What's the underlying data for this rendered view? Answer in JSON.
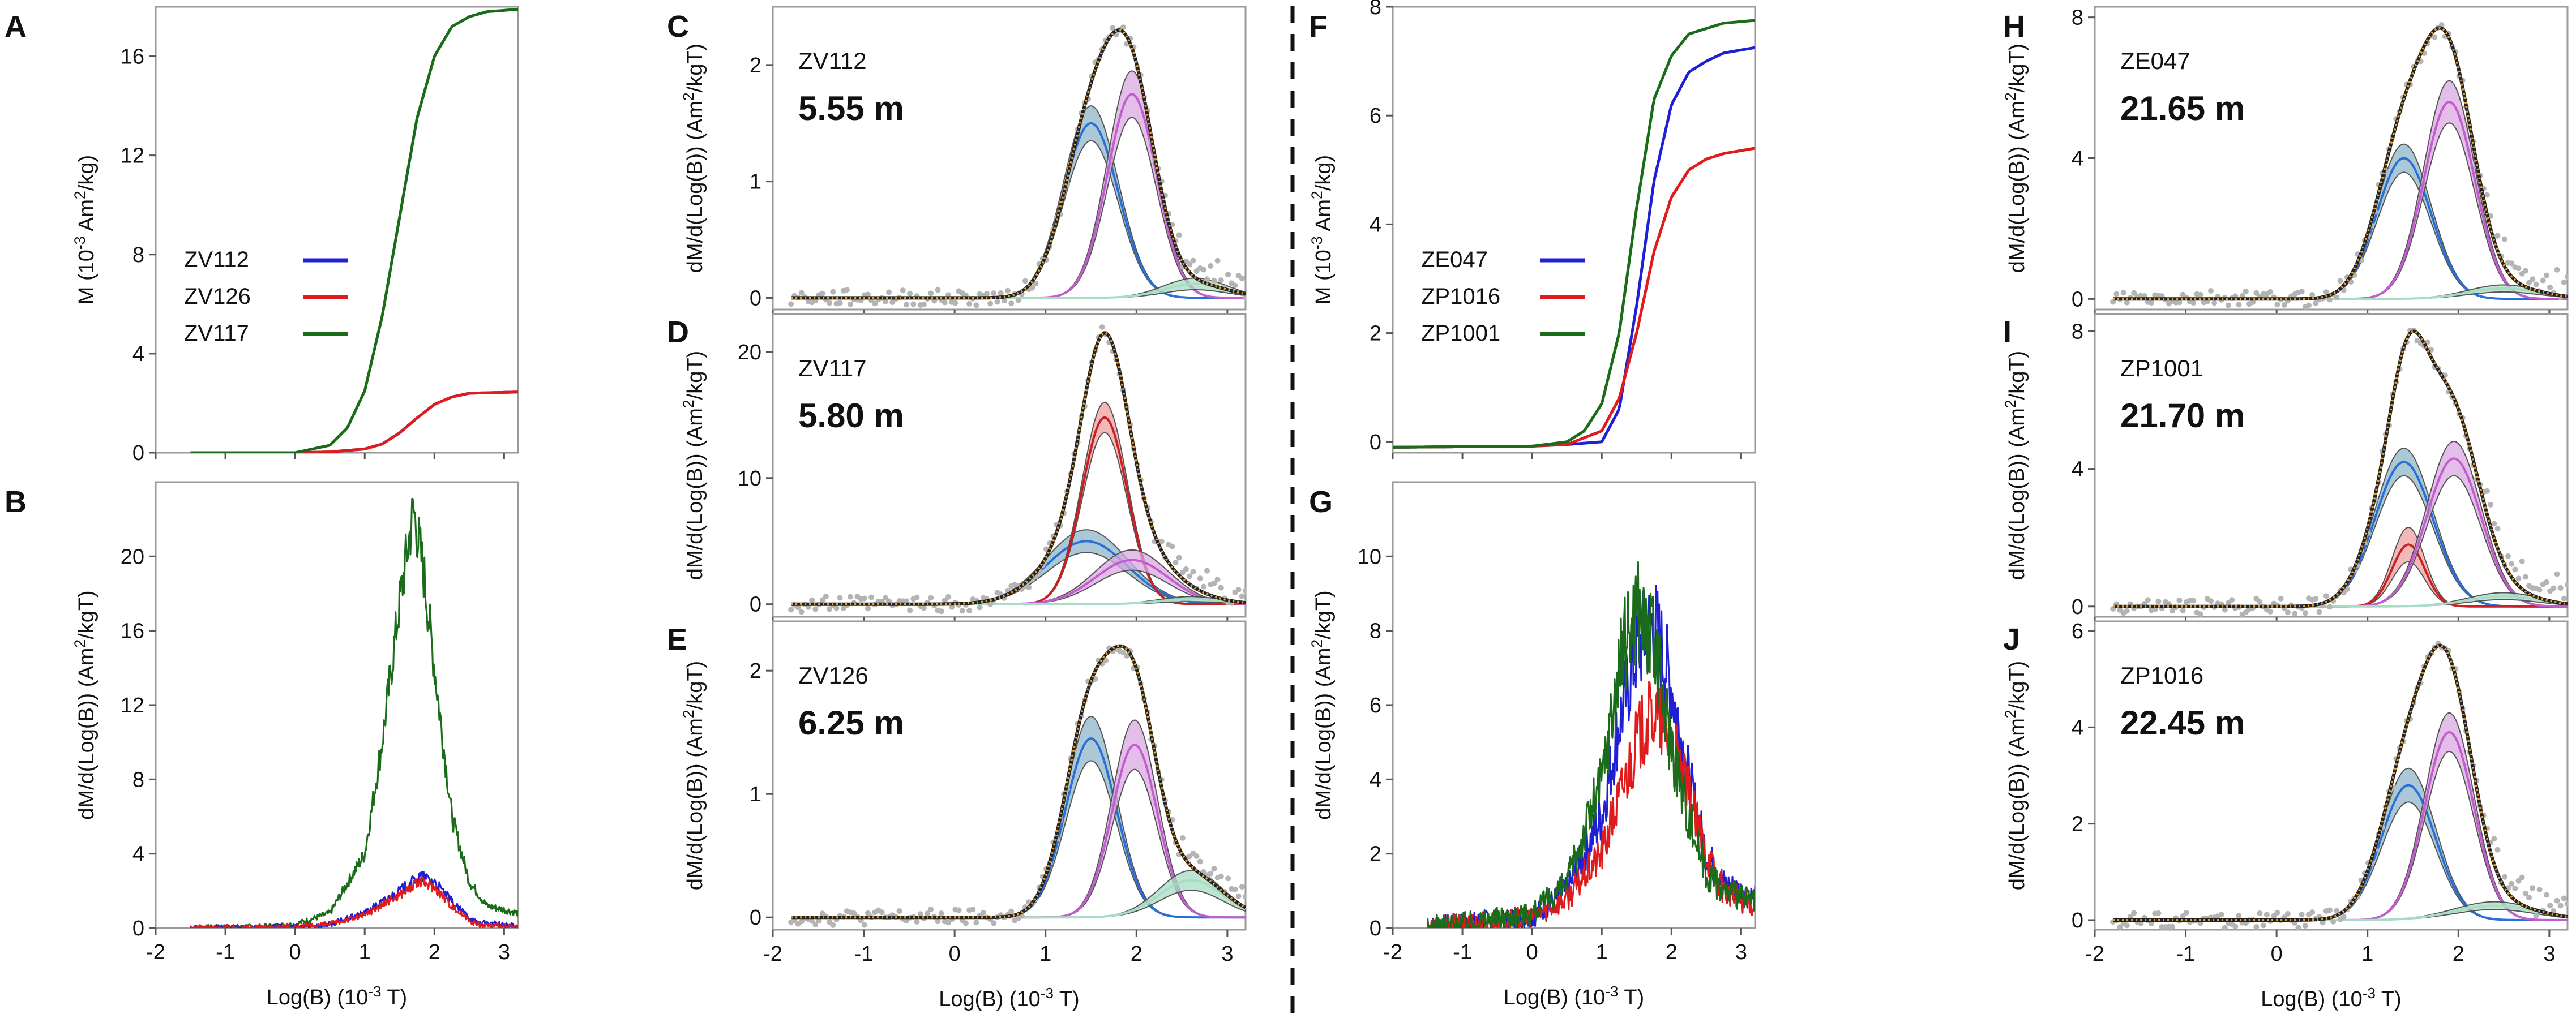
{
  "figure": {
    "xlabel_main": "Log(B) (10",
    "xlabel_sup": "-3",
    "xlabel_tail": " T)"
  },
  "colors": {
    "blue": "#1f1fd6",
    "red": "#e01b1b",
    "green": "#1a6b1a",
    "fit_orange": "#e8a43c",
    "fit_black": "#222222",
    "comp_blue": "#2a6fd6",
    "comp_blue_band": "#8fb5c9",
    "comp_purple": "#c25ccf",
    "comp_purple_band": "#d9a8e0",
    "comp_red": "#cc1f1f",
    "comp_red_band": "#f0a0a0",
    "comp_mint": "#a8dcc4",
    "data_gray": "#b4b4b4",
    "divider": "#111111"
  },
  "chart_data": [
    {
      "panel": "A",
      "type": "line",
      "title": "",
      "ylabel": "M (10-3 Am2/kg)",
      "xlabel": "",
      "xlim": [
        -2,
        3.2
      ],
      "ylim": [
        0,
        18
      ],
      "xticks": [],
      "yticks": [
        "0",
        "4",
        "8",
        "12",
        "16"
      ],
      "legend": {
        "placement": "middle-left",
        "entries": [
          "ZV112",
          "ZV126",
          "ZV117"
        ]
      },
      "series": [
        {
          "name": "ZV112",
          "color": "blue",
          "x": [
            -1.5,
            0,
            0.5,
            1,
            1.25,
            1.5,
            1.75,
            2,
            2.25,
            2.5,
            3.2
          ],
          "y": [
            0,
            0,
            0.03,
            0.15,
            0.35,
            0.8,
            1.4,
            1.95,
            2.25,
            2.4,
            2.45
          ]
        },
        {
          "name": "ZV126",
          "color": "red",
          "x": [
            -1.5,
            0,
            0.5,
            1,
            1.25,
            1.5,
            1.75,
            2,
            2.25,
            2.5,
            3.2
          ],
          "y": [
            0,
            0,
            0.03,
            0.15,
            0.35,
            0.8,
            1.4,
            1.95,
            2.25,
            2.4,
            2.45
          ]
        },
        {
          "name": "ZV117",
          "color": "green",
          "x": [
            -1.5,
            0,
            0.5,
            0.75,
            1,
            1.25,
            1.5,
            1.75,
            2,
            2.25,
            2.5,
            2.75,
            3.2
          ],
          "y": [
            0,
            0,
            0.3,
            1,
            2.5,
            5.5,
            9.5,
            13.5,
            16,
            17.2,
            17.6,
            17.8,
            17.9
          ]
        }
      ]
    },
    {
      "panel": "B",
      "type": "line",
      "title": "",
      "ylabel": "dM/d(Log(B)) (Am2/kgT)",
      "xlabel": "Log(B) (10-3 T)",
      "xlim": [
        -2,
        3.2
      ],
      "ylim": [
        0,
        24
      ],
      "xticks": [
        "-2",
        "-1",
        "0",
        "1",
        "2",
        "3"
      ],
      "yticks": [
        "0",
        "4",
        "8",
        "12",
        "16",
        "20"
      ],
      "series": [
        {
          "name": "ZV117",
          "color": "green",
          "x": [
            -1.5,
            -0.5,
            0,
            0.5,
            1,
            1.25,
            1.5,
            1.7,
            1.85,
            2,
            2.25,
            2.5,
            2.75,
            3.2
          ],
          "y": [
            0,
            0.05,
            0.2,
            0.8,
            4,
            10,
            17.5,
            22.5,
            19,
            14,
            6,
            2.5,
            1.2,
            0.8
          ]
        },
        {
          "name": "ZV112",
          "color": "blue",
          "x": [
            -1.5,
            0,
            0.5,
            1,
            1.5,
            1.8,
            2,
            2.3,
            2.6,
            3.2
          ],
          "y": [
            0,
            0.05,
            0.2,
            0.8,
            2,
            2.8,
            2.5,
            1.2,
            0.3,
            0.1
          ]
        },
        {
          "name": "ZV126",
          "color": "red",
          "x": [
            -1.5,
            0,
            0.5,
            1,
            1.5,
            1.8,
            2,
            2.3,
            2.6,
            3.2
          ],
          "y": [
            0,
            0.05,
            0.2,
            0.7,
            1.8,
            2.5,
            2.2,
            1,
            0.2,
            0
          ]
        }
      ]
    },
    {
      "panel": "C",
      "type": "line",
      "sample": "ZV112",
      "depth": "5.55 m",
      "ylabel": "dM/d(Log(B)) (Am2/kgT)",
      "xlabel": "",
      "xlim": [
        -2,
        3.2
      ],
      "ylim": [
        -0.1,
        2.5
      ],
      "xticks": [],
      "yticks": [
        "0",
        "1",
        "2"
      ],
      "total_peak": 2.3,
      "components": [
        {
          "name": "blue",
          "mu": 1.5,
          "sigma": 0.3,
          "amp": 1.5,
          "band": 0.15
        },
        {
          "name": "purple",
          "mu": 1.95,
          "sigma": 0.27,
          "amp": 1.75,
          "band": 0.2
        },
        {
          "name": "mint",
          "mu": 2.65,
          "sigma": 0.35,
          "amp": 0.12,
          "band": 0.05
        }
      ]
    },
    {
      "panel": "D",
      "type": "line",
      "sample": "ZV117",
      "depth": "5.80 m",
      "ylabel": "dM/d(Log(B)) (Am2/kgT)",
      "xlabel": "",
      "xlim": [
        -2,
        3.2
      ],
      "ylim": [
        -1,
        23
      ],
      "xticks": [],
      "yticks": [
        "0",
        "10",
        "20"
      ],
      "total_peak": 21.5,
      "components": [
        {
          "name": "blue",
          "mu": 1.45,
          "sigma": 0.45,
          "amp": 5,
          "band": 0.9
        },
        {
          "name": "red",
          "mu": 1.65,
          "sigma": 0.25,
          "amp": 14.8,
          "band": 1.2
        },
        {
          "name": "purple",
          "mu": 1.95,
          "sigma": 0.4,
          "amp": 3.5,
          "band": 0.8
        },
        {
          "name": "mint",
          "mu": 2.6,
          "sigma": 0.35,
          "amp": 0.4,
          "band": 0.2
        }
      ]
    },
    {
      "panel": "E",
      "type": "line",
      "sample": "ZV126",
      "depth": "6.25 m",
      "ylabel": "dM/d(Log(B)) (Am2/kgT)",
      "xlabel": "Log(B) (10-3 T)",
      "xlim": [
        -2,
        3.2
      ],
      "ylim": [
        -0.1,
        2.4
      ],
      "xticks": [
        "-2",
        "-1",
        "0",
        "1",
        "2",
        "3"
      ],
      "yticks": [
        "0",
        "1",
        "2"
      ],
      "total_peak": 2.2,
      "components": [
        {
          "name": "blue",
          "mu": 1.5,
          "sigma": 0.28,
          "amp": 1.45,
          "band": 0.18
        },
        {
          "name": "purple",
          "mu": 1.98,
          "sigma": 0.25,
          "amp": 1.4,
          "band": 0.2
        },
        {
          "name": "mint",
          "mu": 2.6,
          "sigma": 0.35,
          "amp": 0.3,
          "band": 0.08
        }
      ]
    },
    {
      "panel": "F",
      "type": "line",
      "title": "",
      "ylabel": "M (10-3 Am2/kg)",
      "xlabel": "",
      "xlim": [
        -2,
        3.2
      ],
      "ylim": [
        -0.2,
        8
      ],
      "xticks": [],
      "yticks": [
        "0",
        "2",
        "4",
        "6",
        "8"
      ],
      "legend": {
        "placement": "middle-left",
        "entries": [
          "ZE047",
          "ZP1016",
          "ZP1001"
        ]
      },
      "series": [
        {
          "name": "ZE047",
          "color": "blue",
          "x": [
            -2,
            0,
            0.5,
            1,
            1.25,
            1.5,
            1.75,
            2,
            2.25,
            2.5,
            2.75,
            3.2
          ],
          "y": [
            -0.1,
            -0.08,
            -0.05,
            0,
            0.6,
            2.5,
            4.8,
            6.2,
            6.8,
            7,
            7.15,
            7.25
          ]
        },
        {
          "name": "ZP1016",
          "color": "red",
          "x": [
            -2,
            0,
            0.5,
            1,
            1.25,
            1.5,
            1.75,
            2,
            2.25,
            2.5,
            2.75,
            3.2
          ],
          "y": [
            -0.1,
            -0.08,
            -0.05,
            0.2,
            0.8,
            2,
            3.5,
            4.5,
            5,
            5.2,
            5.3,
            5.4
          ]
        },
        {
          "name": "ZP1001",
          "color": "green",
          "x": [
            -2,
            0,
            0.5,
            0.75,
            1,
            1.25,
            1.5,
            1.75,
            2,
            2.25,
            2.5,
            2.75,
            3.2
          ],
          "y": [
            -0.1,
            -0.08,
            0,
            0.2,
            0.7,
            2,
            4.3,
            6.3,
            7.1,
            7.5,
            7.6,
            7.7,
            7.75
          ]
        }
      ]
    },
    {
      "panel": "G",
      "type": "line",
      "title": "",
      "ylabel": "dM/d(Log(B)) (Am2/kgT)",
      "xlabel": "Log(B) (10-3 T)",
      "xlim": [
        -2,
        3.2
      ],
      "ylim": [
        0,
        12
      ],
      "xticks": [
        "-2",
        "-1",
        "0",
        "1",
        "2",
        "3"
      ],
      "yticks": [
        "0",
        "2",
        "4",
        "6",
        "8",
        "10"
      ],
      "series": [
        {
          "name": "ZE047",
          "color": "blue",
          "x": [
            -1.5,
            0,
            0.5,
            1,
            1.25,
            1.5,
            1.75,
            2,
            2.25,
            2.5,
            2.75,
            3.2
          ],
          "y": [
            0,
            0.3,
            1,
            3,
            5.5,
            7.5,
            8.2,
            6.5,
            4,
            2,
            1.2,
            0.8
          ]
        },
        {
          "name": "ZP1016",
          "color": "red",
          "x": [
            -1.5,
            0,
            0.5,
            1,
            1.25,
            1.5,
            1.75,
            2,
            2.25,
            2.5,
            2.75,
            3.2
          ],
          "y": [
            0,
            0.3,
            0.8,
            2,
            3.5,
            5,
            5.8,
            5,
            3.5,
            2,
            1,
            0.6
          ]
        },
        {
          "name": "ZP1001",
          "color": "green",
          "x": [
            -1.5,
            0,
            0.5,
            1,
            1.25,
            1.5,
            1.75,
            2,
            2.25,
            2.5,
            2.75,
            3.2
          ],
          "y": [
            0,
            0.4,
            1.2,
            4,
            7,
            8.8,
            7.5,
            5,
            3,
            1.5,
            1,
            0.7
          ]
        }
      ]
    },
    {
      "panel": "H",
      "type": "line",
      "sample": "ZE047",
      "depth": "21.65 m",
      "ylabel": "dM/d(Log(B)) (Am2/kgT)",
      "xlabel": "",
      "xlim": [
        -2,
        3.2
      ],
      "ylim": [
        -0.3,
        8.3
      ],
      "xticks": [],
      "yticks": [
        "0",
        "4",
        "8"
      ],
      "total_peak": 7.7,
      "components": [
        {
          "name": "blue",
          "mu": 1.4,
          "sigma": 0.3,
          "amp": 4,
          "band": 0.4
        },
        {
          "name": "purple",
          "mu": 1.9,
          "sigma": 0.28,
          "amp": 5.6,
          "band": 0.6
        },
        {
          "name": "mint",
          "mu": 2.5,
          "sigma": 0.4,
          "amp": 0.3,
          "band": 0.1
        }
      ]
    },
    {
      "panel": "I",
      "type": "line",
      "sample": "ZP1001",
      "depth": "21.70 m",
      "ylabel": "dM/d(Log(B)) (Am2/kgT)",
      "xlabel": "",
      "xlim": [
        -2,
        3.2
      ],
      "ylim": [
        -0.3,
        8.5
      ],
      "xticks": [],
      "yticks": [
        "0",
        "4",
        "8"
      ],
      "total_peak": 8.0,
      "components": [
        {
          "name": "blue",
          "mu": 1.4,
          "sigma": 0.32,
          "amp": 4.2,
          "band": 0.4
        },
        {
          "name": "red",
          "mu": 1.45,
          "sigma": 0.18,
          "amp": 1.8,
          "band": 0.5
        },
        {
          "name": "purple",
          "mu": 1.95,
          "sigma": 0.3,
          "amp": 4.3,
          "band": 0.5
        },
        {
          "name": "mint",
          "mu": 2.5,
          "sigma": 0.4,
          "amp": 0.3,
          "band": 0.1
        }
      ]
    },
    {
      "panel": "J",
      "type": "line",
      "sample": "ZP1016",
      "depth": "22.45 m",
      "ylabel": "dM/d(Log(B)) (Am2/kgT)",
      "xlabel": "Log(B) (10-3 T)",
      "xlim": [
        -2,
        3.2
      ],
      "ylim": [
        -0.2,
        6.2
      ],
      "xticks": [
        "-2",
        "-1",
        "0",
        "1",
        "2",
        "3"
      ],
      "yticks": [
        "0",
        "2",
        "4",
        "6"
      ],
      "total_peak": 5.7,
      "components": [
        {
          "name": "blue",
          "mu": 1.45,
          "sigma": 0.3,
          "amp": 2.8,
          "band": 0.35
        },
        {
          "name": "purple",
          "mu": 1.9,
          "sigma": 0.27,
          "amp": 3.9,
          "band": 0.4
        },
        {
          "name": "mint",
          "mu": 2.4,
          "sigma": 0.45,
          "amp": 0.3,
          "band": 0.08
        }
      ]
    }
  ]
}
